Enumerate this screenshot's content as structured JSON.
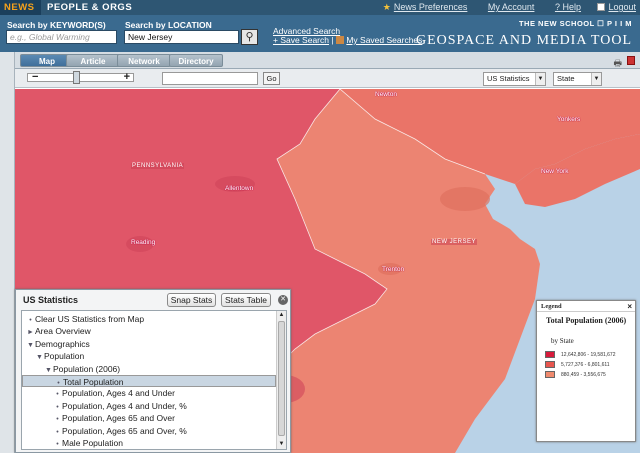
{
  "topbar": {
    "tabs": [
      "NEWS",
      "PEOPLE & ORGS"
    ],
    "links": [
      "News Preferences",
      "My Account",
      "? Help",
      "Logout"
    ]
  },
  "header": {
    "keyword_label": "Search by KEYWORD(S)",
    "keyword_placeholder": "e.g., Global Warming",
    "location_label": "Search by LOCATION",
    "location_value": "New Jersey",
    "advanced_search": "Advanced Search",
    "save_search": "+ Save Search",
    "separator": "|",
    "saved_searches": "My Saved Searches",
    "brand_top": "THE NEW SCHOOL ☐ P I I M",
    "brand_bottom": "GEOSPACE AND MEDIA TOOL"
  },
  "toolbar": {
    "tabs": [
      "Map",
      "Article",
      "Network",
      "Directory"
    ],
    "active_tab": "Map"
  },
  "controls": {
    "go_label": "Go",
    "dataset_select": "US Statistics",
    "level_select": "State",
    "zoom_level_fraction": 0.45
  },
  "map": {
    "state_labels": [
      "PENNSYLVANIA",
      "NEW JERSEY"
    ],
    "cities": [
      "Allentown",
      "Reading",
      "Trenton",
      "Yonkers",
      "New York",
      "Newton"
    ],
    "colors": {
      "pennsylvania": "#e05668",
      "new_jersey": "#ec8472",
      "new_york": "#ea7468",
      "water": "#b9d2e7"
    }
  },
  "stats": {
    "title": "US Statistics",
    "snap_button": "Snap Stats",
    "table_button": "Stats Table",
    "tree": [
      {
        "label": "Clear US Statistics from Map",
        "marker": "•",
        "indent": 0
      },
      {
        "label": "Area Overview",
        "marker": "►",
        "indent": 0
      },
      {
        "label": "Demographics",
        "marker": "▼",
        "indent": 0
      },
      {
        "label": "Population",
        "marker": "▼",
        "indent": 1
      },
      {
        "label": "Population (2006)",
        "marker": "▼",
        "indent": 2
      },
      {
        "label": "Total Population",
        "marker": "•",
        "indent": 3
      },
      {
        "label": "Population, Ages 4 and Under",
        "marker": "•",
        "indent": 3
      },
      {
        "label": "Population, Ages 4 and Under, %",
        "marker": "•",
        "indent": 3
      },
      {
        "label": "Population, Ages 65 and Over",
        "marker": "•",
        "indent": 3
      },
      {
        "label": "Population, Ages 65 and Over, %",
        "marker": "•",
        "indent": 3
      },
      {
        "label": "Male Population",
        "marker": "•",
        "indent": 3
      }
    ],
    "selected_index": 5
  },
  "legend": {
    "title": "Legend",
    "close": "×",
    "heading": "Total Population (2006)",
    "by": "by State",
    "items": [
      {
        "range": "12,642,806 - 19,581,672",
        "color": "#d81b3c"
      },
      {
        "range": "5,727,376 - 6,801,611",
        "color": "#e8564f"
      },
      {
        "range": "880,459 - 3,556,675",
        "color": "#f08a6e"
      }
    ]
  }
}
